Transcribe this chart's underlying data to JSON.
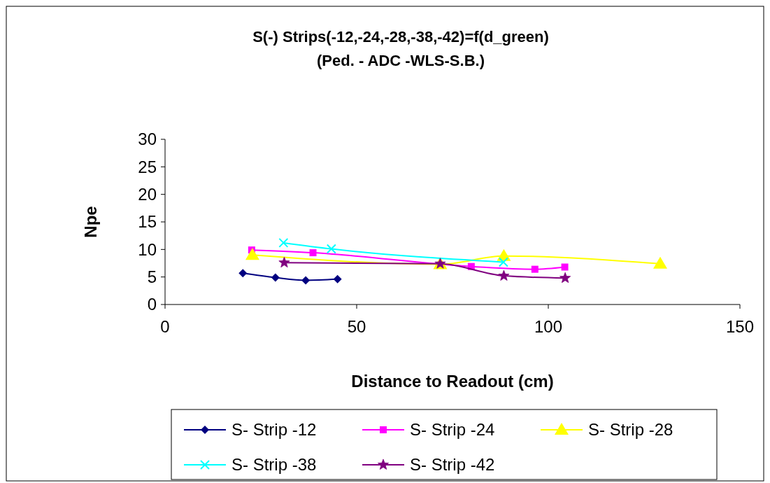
{
  "chart_data": {
    "type": "line",
    "title": "S(-) Strips(-12,-24,-28,-38,-42)=f(d_green)",
    "subtitle": "(Ped. - ADC -WLS-S.B.)",
    "xlabel": "Distance to Readout (cm)",
    "ylabel": "Npe",
    "xlim": [
      0,
      150
    ],
    "xticks": [
      0,
      50,
      100,
      150
    ],
    "ylim": [
      0,
      30
    ],
    "yticks": [
      0,
      5,
      10,
      15,
      20,
      25,
      30
    ],
    "grid": false,
    "legend": "bottom",
    "series": [
      {
        "name": "S- Strip -12",
        "color": "#000080",
        "marker": "diamond",
        "x": [
          20.3,
          28.8,
          36.7,
          45.0
        ],
        "values": [
          5.7,
          4.9,
          4.4,
          4.6
        ]
      },
      {
        "name": "S- Strip -24",
        "color": "#ff00ff",
        "marker": "square",
        "x": [
          22.6,
          38.6,
          79.9,
          96.5,
          104.3
        ],
        "values": [
          9.9,
          9.4,
          6.9,
          6.4,
          6.8
        ]
      },
      {
        "name": "S- Strip -28",
        "color": "#ffff00",
        "marker": "triangle",
        "x": [
          22.8,
          71.8,
          88.4,
          129.2
        ],
        "values": [
          9.0,
          7.3,
          8.8,
          7.4
        ]
      },
      {
        "name": "S- Strip -38",
        "color": "#00ffff",
        "marker": "cross",
        "x": [
          30.9,
          43.4,
          88.3
        ],
        "values": [
          11.2,
          10.1,
          7.7
        ]
      },
      {
        "name": "S- Strip -42",
        "color": "#800080",
        "marker": "star",
        "x": [
          31.1,
          71.8,
          88.4,
          104.4
        ],
        "values": [
          7.6,
          7.4,
          5.2,
          4.8
        ]
      }
    ]
  }
}
